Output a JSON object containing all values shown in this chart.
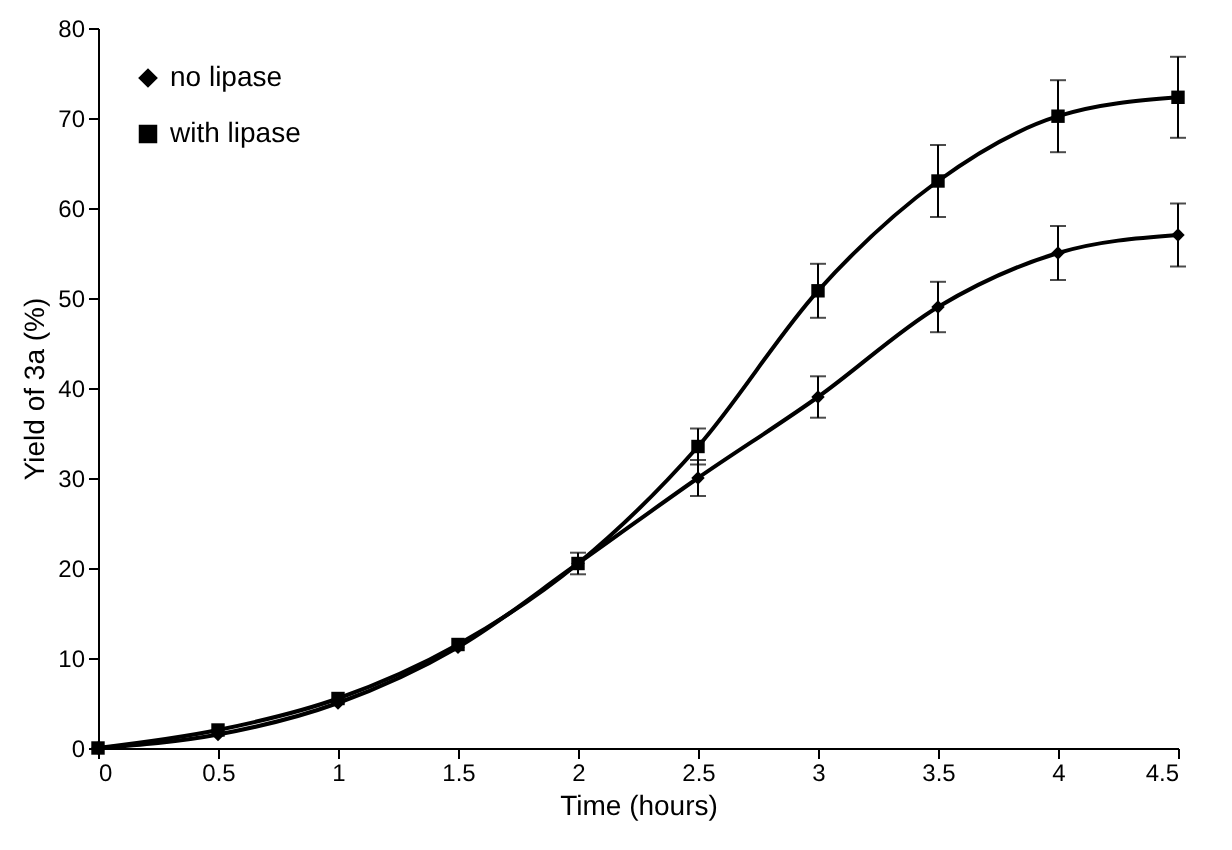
{
  "chart_data": {
    "type": "line",
    "xlabel": "Time (hours)",
    "ylabel": "Yield of 3a (%)",
    "x": [
      0,
      0.5,
      1,
      1.5,
      2,
      2.5,
      3,
      3.5,
      4,
      4.5
    ],
    "series": [
      {
        "name": "no lipase",
        "color": "#000000",
        "marker": "diamond",
        "values": [
          0,
          1.5,
          5,
          11.2,
          20.5,
          30,
          39,
          49,
          55,
          57
        ],
        "errors": [
          null,
          null,
          null,
          null,
          1.2,
          2,
          2.3,
          2.8,
          3,
          3.5
        ]
      },
      {
        "name": "with lipase",
        "color": "#000000",
        "marker": "square",
        "values": [
          0,
          2,
          5.5,
          11.5,
          20.5,
          33.5,
          50.8,
          63,
          70.2,
          72.3
        ],
        "errors": [
          null,
          null,
          null,
          null,
          null,
          2,
          3,
          4,
          4,
          4.5
        ]
      }
    ],
    "xlim": [
      0,
      4.5
    ],
    "xticks": [
      0,
      0.5,
      1,
      1.5,
      2,
      2.5,
      3,
      3.5,
      4,
      4.5
    ],
    "ylim": [
      0,
      80
    ],
    "yticks": [
      0,
      10,
      20,
      30,
      40,
      50,
      60,
      70,
      80
    ],
    "grid": false,
    "legend": "top left"
  }
}
